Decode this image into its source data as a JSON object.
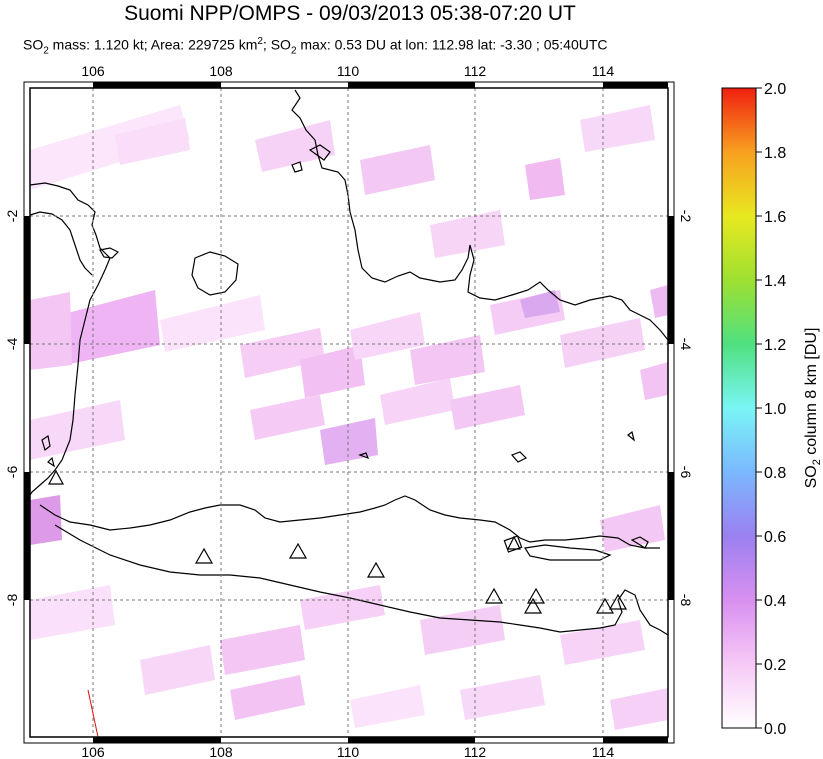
{
  "title": "Suomi NPP/OMPS - 09/03/2013 05:38-07:20 UT",
  "subtitle": {
    "so2_prefix": "SO",
    "mass_text": " mass: 1.120 kt; Area: 229725 km",
    "so2_max_prefix": "; SO",
    "max_text": " max: 0.53 DU at lon: 112.98 lat: -3.30 ; 05:40UTC",
    "sub2": "2",
    "sup2": "2"
  },
  "map": {
    "lon_range": [
      105,
      115
    ],
    "lat_range": [
      -10,
      -1
    ],
    "lon_ticks": [
      "106",
      "108",
      "110",
      "112",
      "114"
    ],
    "lat_ticks": [
      "-2",
      "-4",
      "-6",
      "-8"
    ],
    "volcano_markers": 11,
    "colors": {
      "coast": "#000000",
      "grid": "#777777",
      "frame": "#000000",
      "volcano": "#000000"
    }
  },
  "colorbar": {
    "label_main": "SO",
    "label_sub": "2",
    "label_rest": " column 8 km [DU]",
    "ticks": [
      "0.0",
      "0.2",
      "0.4",
      "0.6",
      "0.8",
      "1.0",
      "1.2",
      "1.4",
      "1.6",
      "1.8",
      "2.0"
    ],
    "range": [
      0.0,
      2.0
    ],
    "colors": [
      "#ffffff",
      "#f6c9f6",
      "#d890f0",
      "#9b80f0",
      "#7ab8ff",
      "#7af5f5",
      "#50e080",
      "#9ee030",
      "#e8e820",
      "#f8a020",
      "#f02010"
    ]
  }
}
